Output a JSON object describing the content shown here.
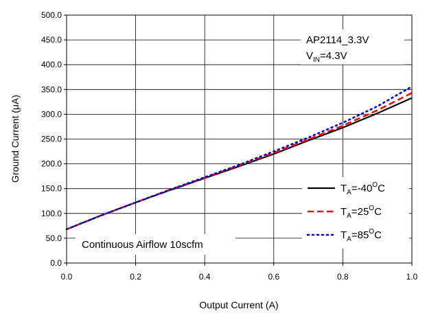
{
  "chart_data": {
    "type": "line",
    "title": "",
    "xlabel": "Output Current (A)",
    "ylabel": "Ground Current (μA)",
    "xlim": [
      0.0,
      1.0
    ],
    "ylim": [
      0.0,
      500.0
    ],
    "x_ticks": [
      "0.0",
      "0.2",
      "0.4",
      "0.6",
      "0.8",
      "1.0"
    ],
    "y_ticks": [
      "0.0",
      "50.0",
      "100.0",
      "150.0",
      "200.0",
      "250.0",
      "300.0",
      "350.0",
      "400.0",
      "450.0",
      "500.0"
    ],
    "grid": true,
    "annotations": {
      "device": "AP2114_3.3V",
      "vin_prefix": "V",
      "vin_sub": "IN",
      "vin_suffix": "=4.3V",
      "airflow": "Continuous Airflow 10scfm"
    },
    "legend_position": "bottom-right",
    "series": [
      {
        "name": "TA=-40OC",
        "label_prefix": "T",
        "label_sub": "A",
        "label_mid": "=-40",
        "label_sup": "O",
        "label_suffix": "C",
        "color": "#000000",
        "dash": "solid",
        "x": [
          0.0,
          0.1,
          0.2,
          0.3,
          0.4,
          0.5,
          0.6,
          0.7,
          0.8,
          0.9,
          1.0
        ],
        "y": [
          68,
          96,
          122,
          147,
          171,
          195,
          220,
          247,
          273,
          302,
          333
        ]
      },
      {
        "name": "TA=25OC",
        "label_prefix": "T",
        "label_sub": "A",
        "label_mid": "=25",
        "label_sup": "O",
        "label_suffix": "C",
        "color": "#ff0000",
        "dash": "dashed",
        "x": [
          0.0,
          0.1,
          0.2,
          0.3,
          0.4,
          0.5,
          0.6,
          0.7,
          0.8,
          0.9,
          1.0
        ],
        "y": [
          68,
          96,
          122,
          148,
          172,
          197,
          222,
          249,
          277,
          308,
          343
        ]
      },
      {
        "name": "TA=85OC",
        "label_prefix": "T",
        "label_sub": "A",
        "label_mid": "=85",
        "label_sup": "O",
        "label_suffix": "C",
        "color": "#0000cc",
        "dash": "dotted",
        "x": [
          0.0,
          0.1,
          0.2,
          0.3,
          0.4,
          0.5,
          0.6,
          0.7,
          0.8,
          0.9,
          1.0
        ],
        "y": [
          68,
          96,
          122,
          148,
          173,
          198,
          225,
          253,
          283,
          316,
          356
        ]
      }
    ]
  }
}
